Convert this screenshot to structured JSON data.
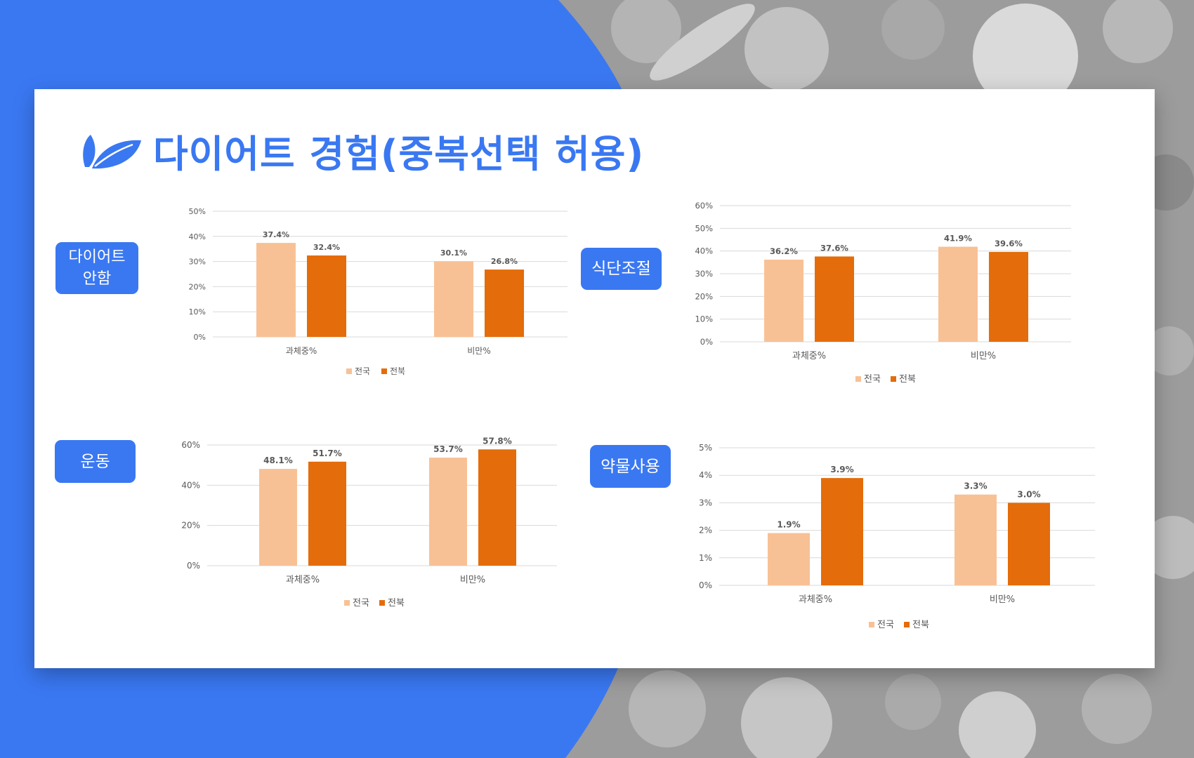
{
  "slide": {
    "title": "다이어트 경험(중복선택 허용)",
    "icon": "leaf-icon",
    "colors": {
      "accent": "#3a78f2",
      "background_photo": "#9a9a9a",
      "card": "#ffffff"
    }
  },
  "badges": {
    "no_diet": "다이어트\n안함",
    "diet_control": "식단조절",
    "exercise": "운동",
    "medication": "약물사용"
  },
  "chart_data": [
    {
      "id": "no-diet",
      "type": "bar",
      "categories": [
        "과체중%",
        "비만%"
      ],
      "series": [
        {
          "name": "전국",
          "values": [
            37.4,
            30.1
          ],
          "labels": [
            "37.4%",
            "30.1%"
          ],
          "color": "#f8c195"
        },
        {
          "name": "전북",
          "values": [
            32.4,
            26.8
          ],
          "labels": [
            "32.4%",
            "26.8%"
          ],
          "color": "#e46c0a"
        }
      ],
      "ylim": [
        0,
        50
      ],
      "yticks": [
        "0%",
        "10%",
        "20%",
        "30%",
        "40%",
        "50%"
      ],
      "grid": true,
      "legend": "bottom"
    },
    {
      "id": "diet-control",
      "type": "bar",
      "categories": [
        "과체중%",
        "비만%"
      ],
      "series": [
        {
          "name": "전국",
          "values": [
            36.2,
            41.9
          ],
          "labels": [
            "36.2%",
            "41.9%"
          ],
          "color": "#f8c195"
        },
        {
          "name": "전북",
          "values": [
            37.6,
            39.6
          ],
          "labels": [
            "37.6%",
            "39.6%"
          ],
          "color": "#e46c0a"
        }
      ],
      "ylim": [
        0,
        60
      ],
      "yticks": [
        "0%",
        "10%",
        "20%",
        "30%",
        "40%",
        "50%",
        "60%"
      ],
      "grid": true,
      "legend": "bottom"
    },
    {
      "id": "exercise",
      "type": "bar",
      "categories": [
        "과체중%",
        "비만%"
      ],
      "series": [
        {
          "name": "전국",
          "values": [
            48.1,
            53.7
          ],
          "labels": [
            "48.1%",
            "53.7%"
          ],
          "color": "#f8c195"
        },
        {
          "name": "전북",
          "values": [
            51.7,
            57.8
          ],
          "labels": [
            "51.7%",
            "57.8%"
          ],
          "color": "#e46c0a"
        }
      ],
      "ylim": [
        0,
        60
      ],
      "yticks": [
        "0%",
        "20%",
        "40%",
        "60%"
      ],
      "grid": true,
      "legend": "bottom"
    },
    {
      "id": "medication",
      "type": "bar",
      "categories": [
        "과체중%",
        "비만%"
      ],
      "series": [
        {
          "name": "전국",
          "values": [
            1.9,
            3.3
          ],
          "labels": [
            "1.9%",
            "3.3%"
          ],
          "color": "#f8c195"
        },
        {
          "name": "전북",
          "values": [
            3.9,
            3.0
          ],
          "labels": [
            "3.9%",
            "3.0%"
          ],
          "color": "#e46c0a"
        }
      ],
      "ylim": [
        0,
        5
      ],
      "yticks": [
        "0%",
        "1%",
        "2%",
        "3%",
        "4%",
        "5%"
      ],
      "grid": true,
      "legend": "bottom"
    }
  ]
}
